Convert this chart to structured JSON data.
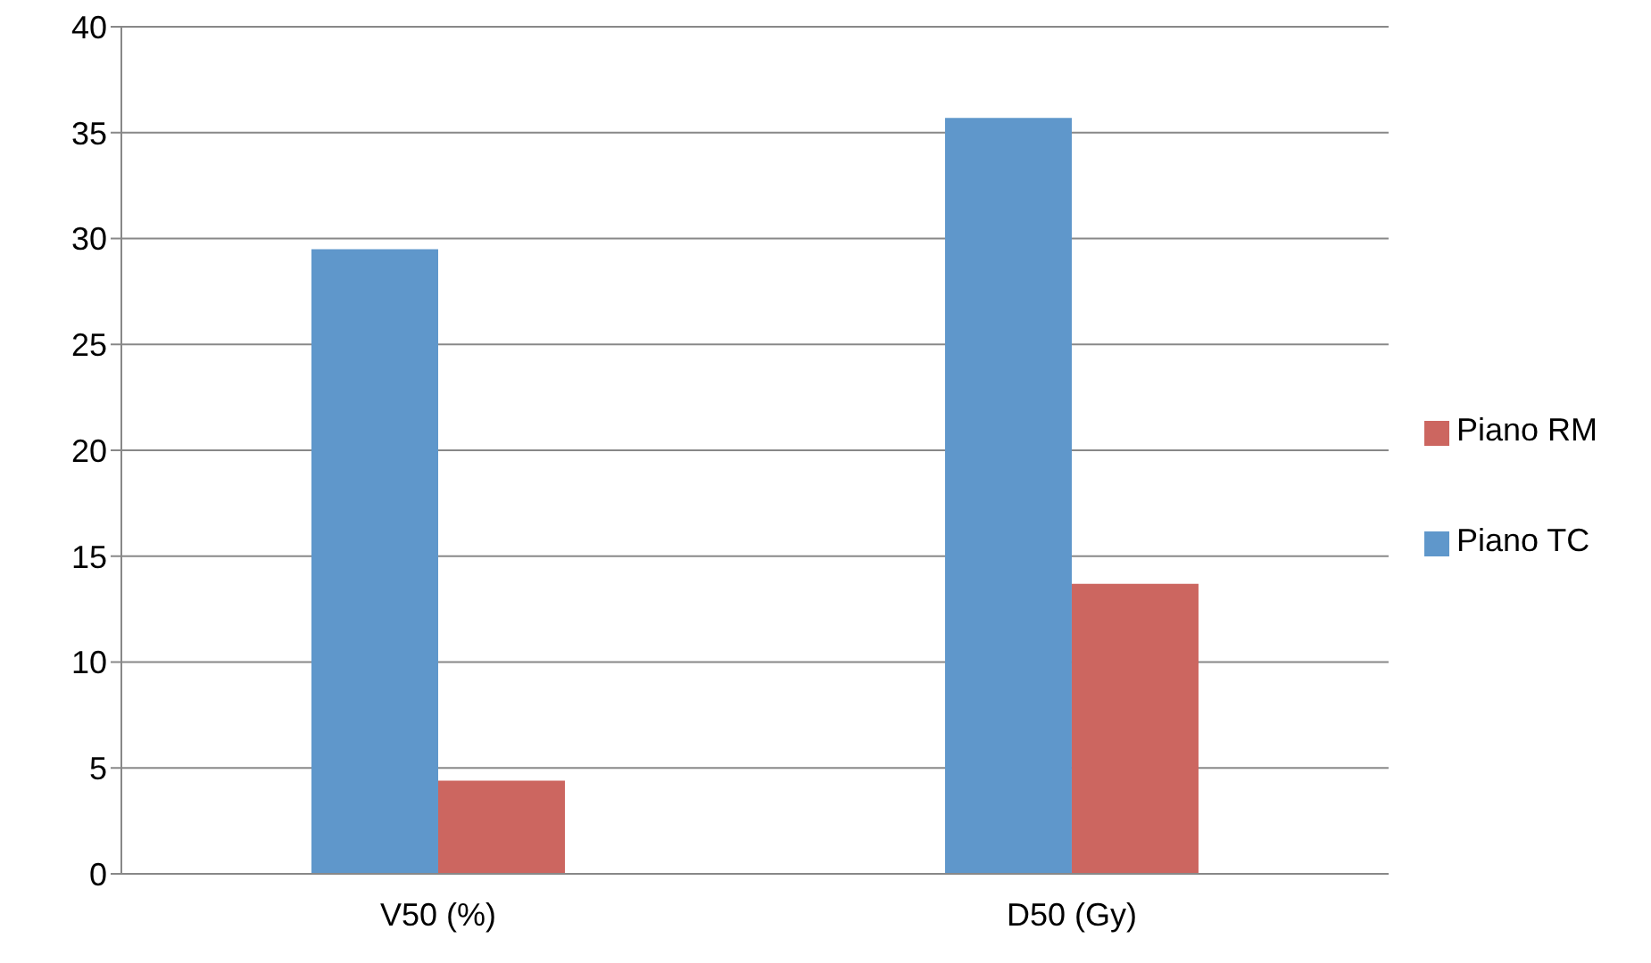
{
  "chart_data": {
    "type": "bar",
    "categories": [
      "V50 (%)",
      "D50 (Gy)"
    ],
    "series": [
      {
        "name": "Piano TC",
        "color": "#5f97cb",
        "values": [
          29.5,
          35.7
        ]
      },
      {
        "name": "Piano RM",
        "color": "#cc6660",
        "values": [
          4.4,
          13.7
        ]
      }
    ],
    "ylim": [
      0,
      40
    ],
    "yticks": [
      0,
      5,
      10,
      15,
      20,
      25,
      30,
      35,
      40
    ],
    "grid": "y",
    "legend": "right"
  }
}
